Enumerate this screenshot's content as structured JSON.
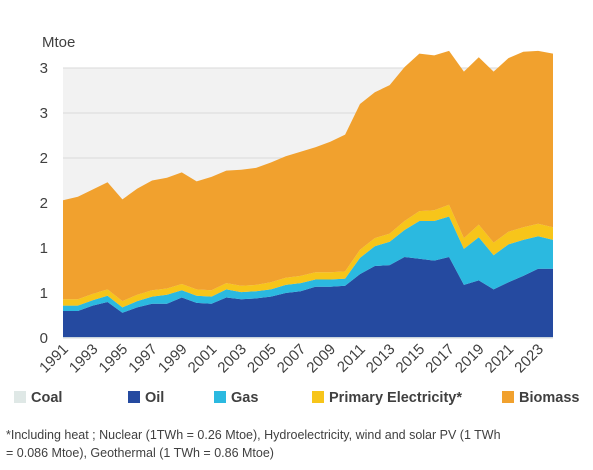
{
  "chart_data": {
    "type": "area",
    "stacked": true,
    "ylabel": "Mtoe",
    "yticks": [
      "0",
      "1",
      "1",
      "2",
      "2",
      "3",
      "3"
    ],
    "ylim": [
      0,
      3.0
    ],
    "x": [
      1991,
      1992,
      1993,
      1994,
      1995,
      1996,
      1997,
      1998,
      1999,
      2000,
      2001,
      2002,
      2003,
      2004,
      2005,
      2006,
      2007,
      2008,
      2009,
      2010,
      2011,
      2012,
      2013,
      2014,
      2015,
      2016,
      2017,
      2018,
      2019,
      2020,
      2021,
      2022,
      2023,
      2024
    ],
    "xtick_labels": [
      "1991",
      "1993",
      "1995",
      "1997",
      "1999",
      "2001",
      "2003",
      "2005",
      "2007",
      "2009",
      "2011",
      "2013",
      "2015",
      "2017",
      "2019",
      "2021",
      "2023"
    ],
    "grid": "horizontal",
    "legend_position": "bottom",
    "series": [
      {
        "name": "Coal",
        "color": "#dfe8e6",
        "values": [
          0.01,
          0.01,
          0.01,
          0.01,
          0.01,
          0.01,
          0.01,
          0.01,
          0.01,
          0.01,
          0.01,
          0.01,
          0.01,
          0.01,
          0.01,
          0.01,
          0.01,
          0.01,
          0.01,
          0.01,
          0.01,
          0.01,
          0.01,
          0.01,
          0.01,
          0.01,
          0.01,
          0.01,
          0.01,
          0.01,
          0.01,
          0.01,
          0.01,
          0.01
        ]
      },
      {
        "name": "Oil",
        "color": "#254aa0",
        "values": [
          0.29,
          0.29,
          0.35,
          0.39,
          0.27,
          0.33,
          0.37,
          0.37,
          0.44,
          0.38,
          0.37,
          0.44,
          0.42,
          0.43,
          0.45,
          0.49,
          0.51,
          0.56,
          0.56,
          0.57,
          0.7,
          0.79,
          0.8,
          0.89,
          0.87,
          0.85,
          0.89,
          0.58,
          0.63,
          0.53,
          0.61,
          0.68,
          0.76,
          0.76
        ]
      },
      {
        "name": "Gas",
        "color": "#2bb9e0",
        "values": [
          0.06,
          0.06,
          0.06,
          0.07,
          0.06,
          0.07,
          0.08,
          0.1,
          0.08,
          0.08,
          0.08,
          0.09,
          0.08,
          0.08,
          0.08,
          0.09,
          0.09,
          0.08,
          0.08,
          0.08,
          0.18,
          0.22,
          0.26,
          0.3,
          0.42,
          0.44,
          0.45,
          0.4,
          0.48,
          0.38,
          0.42,
          0.4,
          0.36,
          0.32
        ]
      },
      {
        "name": "Primary Electricity*",
        "color": "#f7c51a",
        "values": [
          0.07,
          0.07,
          0.07,
          0.07,
          0.07,
          0.07,
          0.07,
          0.07,
          0.07,
          0.07,
          0.07,
          0.07,
          0.07,
          0.07,
          0.08,
          0.08,
          0.08,
          0.08,
          0.08,
          0.08,
          0.09,
          0.09,
          0.09,
          0.1,
          0.11,
          0.12,
          0.13,
          0.12,
          0.14,
          0.14,
          0.14,
          0.14,
          0.14,
          0.14
        ]
      },
      {
        "name": "Biomass",
        "color": "#f1a12e",
        "values": [
          1.1,
          1.14,
          1.16,
          1.19,
          1.13,
          1.18,
          1.22,
          1.23,
          1.24,
          1.2,
          1.26,
          1.25,
          1.29,
          1.3,
          1.33,
          1.35,
          1.38,
          1.39,
          1.45,
          1.52,
          1.62,
          1.62,
          1.65,
          1.71,
          1.75,
          1.72,
          1.71,
          1.85,
          1.86,
          1.9,
          1.93,
          1.95,
          1.92,
          1.93
        ]
      }
    ]
  },
  "footnote": {
    "line1": "*Including heat ; Nuclear (1TWh = 0.26 Mtoe), Hydroelectricity, wind and solar PV (1 TWh",
    "line2": "= 0.086 Mtoe), Geothermal (1 TWh = 0.86 Mtoe)"
  }
}
